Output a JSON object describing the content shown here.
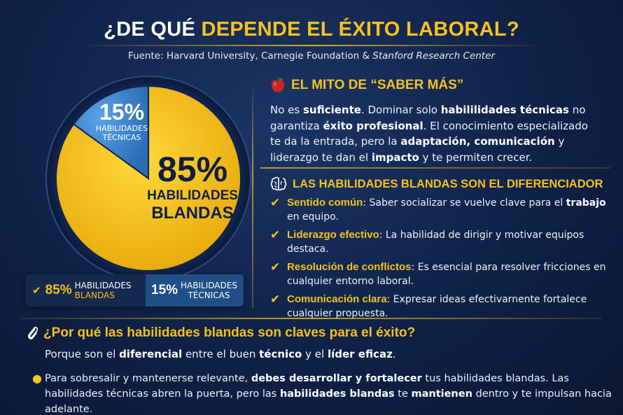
{
  "title": {
    "part1": "¿DE QUÉ ",
    "part2": "DEPENDE EL ÉXITO LABORAL?"
  },
  "source": {
    "prefix": "Fuente: Harvard University, Carnegie Foundation & ",
    "italic": "Stanford Research Center"
  },
  "chart_data": {
    "type": "pie",
    "title": "",
    "slices": [
      {
        "label": "HABILIDADES BLANDAS",
        "value": 85,
        "color": "#f6c21c"
      },
      {
        "label": "HABILIDADES TÉCNICAS",
        "value": 15,
        "color": "#3d86cf"
      }
    ],
    "data_labels": {
      "soft_pct": "85%",
      "soft_line1": "HABILIDADES",
      "soft_line2": "BLANDAS",
      "tech_pct": "15%",
      "tech_line1": "HABILIDADES",
      "tech_line2": "TÉCNICAS"
    }
  },
  "legend": {
    "soft_pct": "85%",
    "soft_line1": "HABILIDADES",
    "soft_line2": "BLANDAS",
    "tech_pct": "15%",
    "tech_line1": "HABILIDADES",
    "tech_line2": "TÉCNICAS"
  },
  "myth": {
    "icon": "apple-icon",
    "heading": "EL MITO DE “SABER MÁS”",
    "p": [
      {
        "t": "No es ",
        "b": false
      },
      {
        "t": "suficiente",
        "b": true
      },
      {
        "t": ". Dominar solo ",
        "b": false
      },
      {
        "t": "habililidades técnicas",
        "b": true
      },
      {
        "t": " no garantiza ",
        "b": false
      },
      {
        "t": "éxito profesional",
        "b": true
      },
      {
        "t": ". El conocimiento especializado te da la entrada, pero la ",
        "b": false
      },
      {
        "t": "adaptación, comunicación",
        "b": true
      },
      {
        "t": " y liderazgo te dan el ",
        "b": false
      },
      {
        "t": "impacto",
        "b": true
      },
      {
        "t": " y te permiten crecer.",
        "b": false
      }
    ]
  },
  "differentiator": {
    "icon": "brain-icon",
    "heading": "LAS HABILIDADES BLANDAS SON EL DIFERENCIADOR",
    "items": [
      {
        "name": "Sentido común",
        "pre": ": Saber socializar se vuelve clave para el ",
        "bold": "trabajo",
        "post": " en equipo."
      },
      {
        "name": "Liderazgo efectivo",
        "pre": ": La habilidad de dirigir y motivar equipos destaca.",
        "bold": "",
        "post": ""
      },
      {
        "name": "Resolución de conflictos",
        "pre": ": Es esencial para resolver fricciones en cualquier entorno laboral.",
        "bold": "",
        "post": ""
      },
      {
        "name": "Comunicación clara",
        "pre": ": Expresar ideas efectivarnente fortalece cualquier propuesta.",
        "bold": "",
        "post": ""
      }
    ]
  },
  "why": {
    "icon": "paperclip-icon",
    "heading": "¿Por qué las habilidades blandas son claves para el éxito?",
    "line1": [
      {
        "t": "Porque son el ",
        "b": false
      },
      {
        "t": "diferencial",
        "b": true
      },
      {
        "t": " entre el buen ",
        "b": false
      },
      {
        "t": "técnico",
        "b": true
      },
      {
        "t": " y el ",
        "b": false
      },
      {
        "t": "líder eficaz",
        "b": true
      },
      {
        "t": ".",
        "b": false
      }
    ],
    "bullet": [
      {
        "t": "Para sobresalir y mantenerse relevante, ",
        "b": false
      },
      {
        "t": "debes desarrollar y fortalecer",
        "b": true
      },
      {
        "t": " tus habilidades blandas. Las habilidades técnicas abren la puerta, pero las ",
        "b": false
      },
      {
        "t": "habilidades blandas",
        "b": true
      },
      {
        "t": " te ",
        "b": false
      },
      {
        "t": "mantienen",
        "b": true
      },
      {
        "t": " dentro y te impulsan hacia adelante.",
        "b": false
      }
    ]
  }
}
